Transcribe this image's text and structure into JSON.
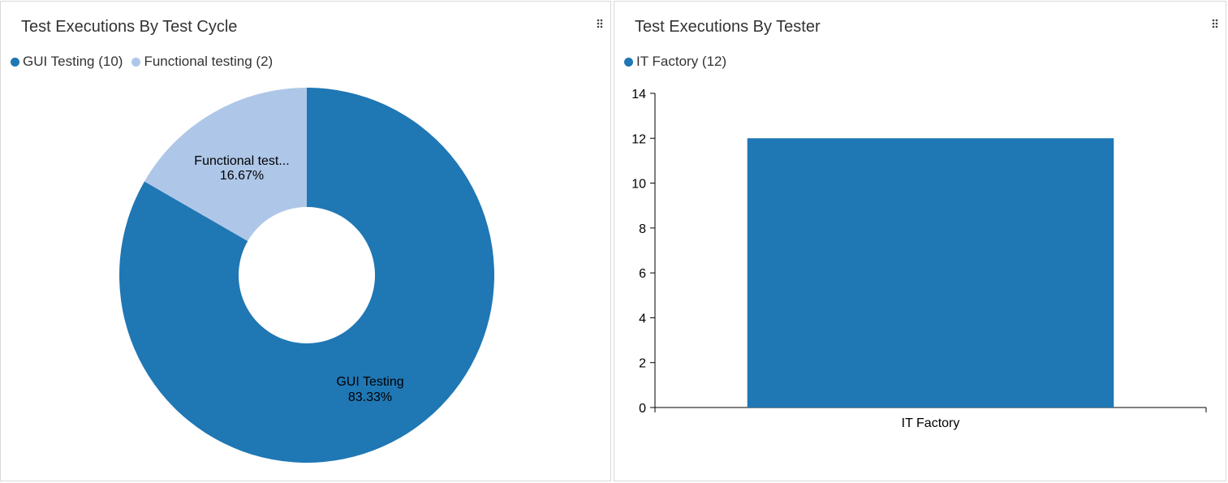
{
  "left_panel": {
    "title": "Test Executions By Test Cycle",
    "drag_icon": "drag-handle-icon",
    "legend": [
      {
        "label": "GUI Testing (10)",
        "color": "#1f77b4"
      },
      {
        "label": "Functional testing (2)",
        "color": "#aec7e8"
      }
    ],
    "slice_labels": [
      {
        "name": "GUI Testing",
        "percent": "83.33%"
      },
      {
        "name": "Functional test...",
        "percent": "16.67%"
      }
    ]
  },
  "right_panel": {
    "title": "Test Executions By Tester",
    "drag_icon": "drag-handle-icon",
    "legend": [
      {
        "label": "IT Factory (12)",
        "color": "#1f77b4"
      }
    ]
  },
  "chart_data": [
    {
      "type": "pie",
      "title": "Test Executions By Test Cycle",
      "donut": true,
      "categories": [
        "GUI Testing",
        "Functional testing"
      ],
      "values": [
        10,
        2
      ],
      "percentages": [
        83.33,
        16.67
      ],
      "colors": [
        "#1f77b4",
        "#aec7e8"
      ],
      "legend": "top-left"
    },
    {
      "type": "bar",
      "title": "Test Executions By Tester",
      "categories": [
        "IT Factory"
      ],
      "values": [
        12
      ],
      "colors": [
        "#1f77b4"
      ],
      "xlabel": "",
      "ylabel": "",
      "ylim": [
        0,
        14
      ],
      "yticks": [
        0,
        2,
        4,
        6,
        8,
        10,
        12,
        14
      ],
      "grid": false,
      "legend": "top-left"
    }
  ]
}
